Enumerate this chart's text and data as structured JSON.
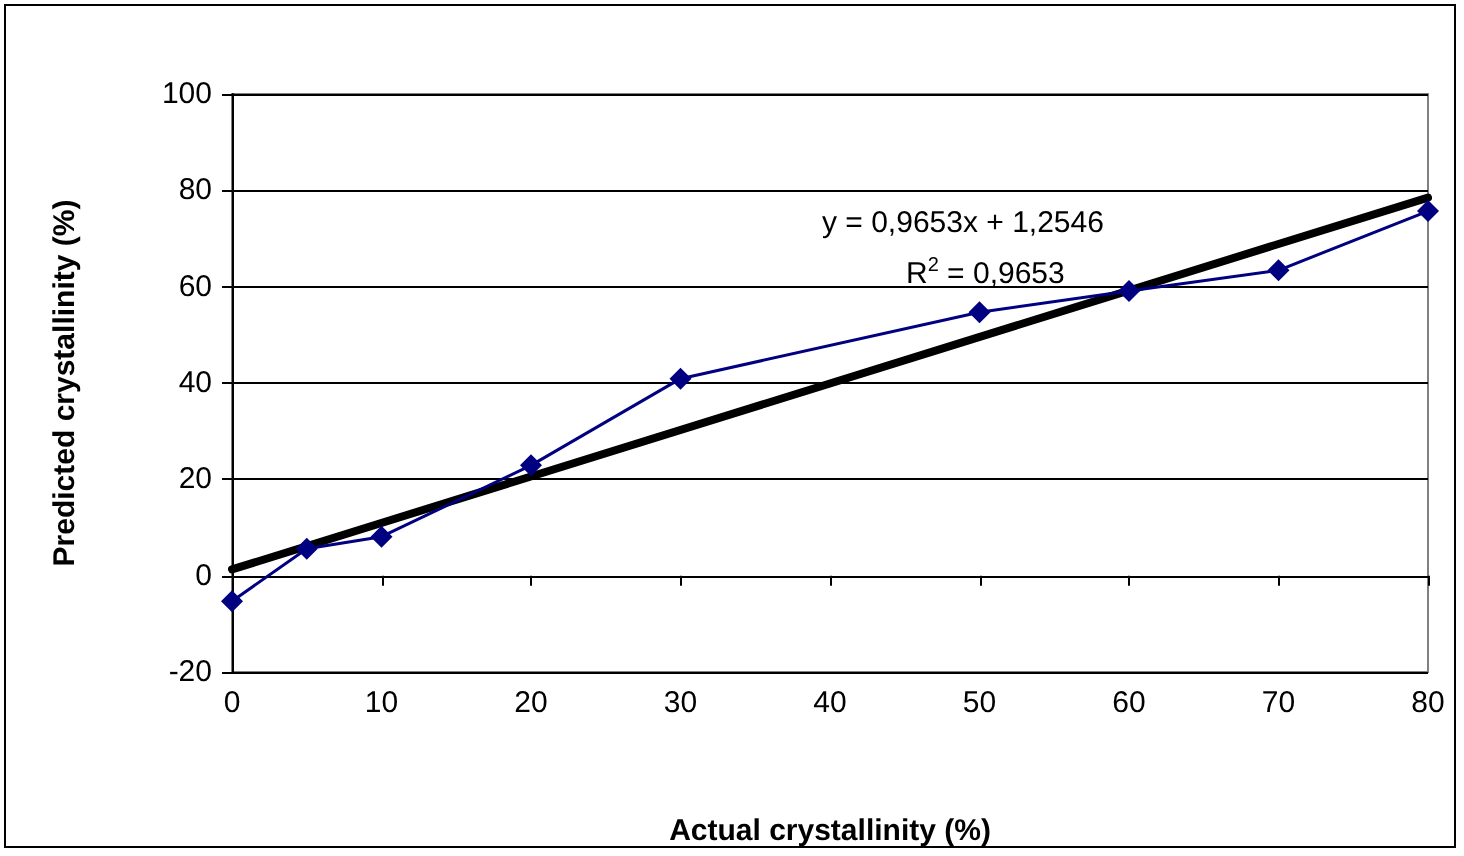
{
  "chart_data": {
    "type": "line",
    "xlabel": "Actual crystallinity (%)",
    "ylabel": "Predicted crystallinity (%)",
    "annotations": [
      "y = 0,9653x + 1,2546",
      "R$^{2}$ = 0,9653"
    ],
    "series": [
      {
        "color": "#000080",
        "marker": "diamond",
        "x": [
          0,
          5,
          10,
          20,
          30,
          50,
          60,
          70,
          80
        ],
        "values": [
          -5.3,
          5.6,
          8.1,
          22.9,
          40.9,
          54.7,
          59.1,
          63.4,
          75.7
        ]
      },
      {
        "color": "#000000",
        "marker": "none",
        "x": [
          0,
          80
        ],
        "values": [
          1.3,
          78.5
        ]
      }
    ],
    "xlim": [
      0,
      80
    ],
    "xticks": [
      0,
      10,
      20,
      30,
      40,
      50,
      60,
      70,
      80
    ],
    "ylim": [
      -20,
      100
    ],
    "yticks": [
      -20,
      0,
      20,
      40,
      60,
      80,
      100
    ],
    "grid": "y"
  }
}
